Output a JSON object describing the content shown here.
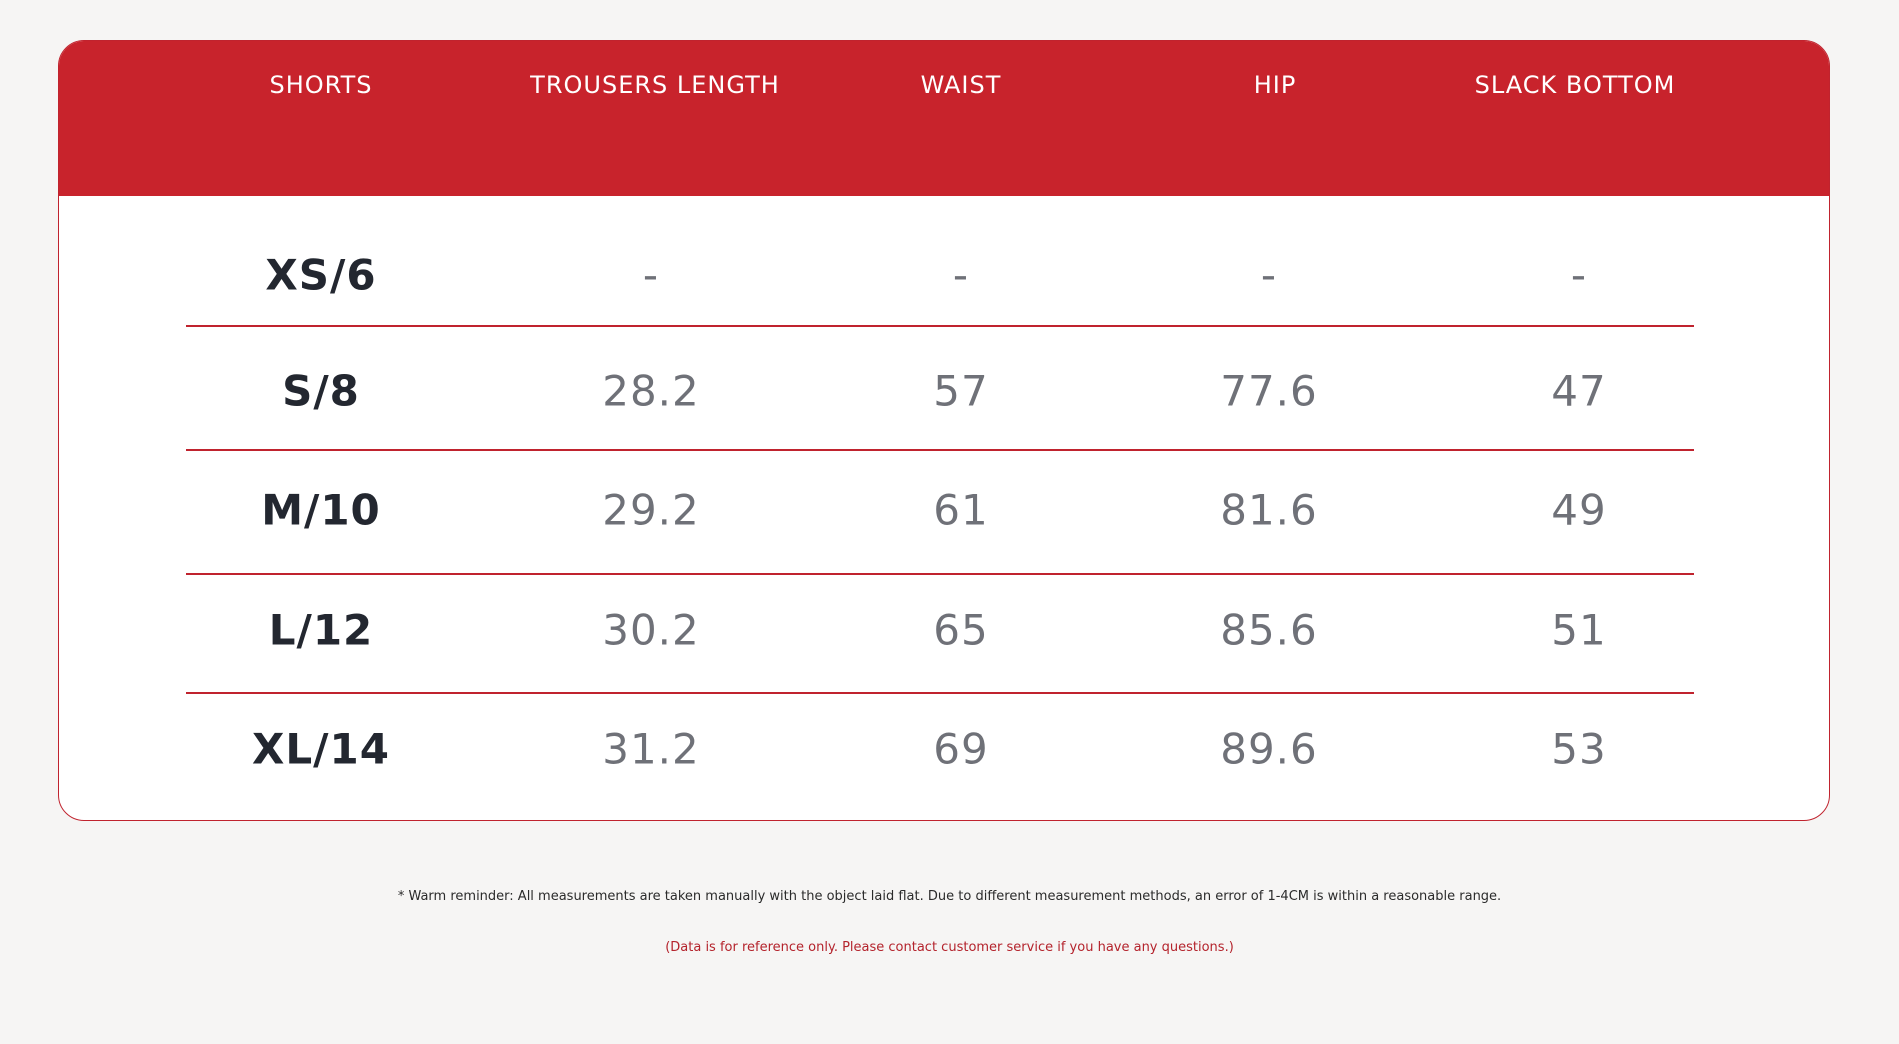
{
  "table": {
    "headers": [
      "SHORTS",
      "TROUSERS LENGTH",
      "WAIST",
      "HIP",
      "SLACK BOTTOM"
    ],
    "rows": [
      {
        "size": "XS/6",
        "trousers_length": "-",
        "waist": "-",
        "hip": "-",
        "slack_bottom": "-"
      },
      {
        "size": "S/8",
        "trousers_length": "28.2",
        "waist": "57",
        "hip": "77.6",
        "slack_bottom": "47"
      },
      {
        "size": "M/10",
        "trousers_length": "29.2",
        "waist": "61",
        "hip": "81.6",
        "slack_bottom": "49"
      },
      {
        "size": "L/12",
        "trousers_length": "30.2",
        "waist": "65",
        "hip": "85.6",
        "slack_bottom": "51"
      },
      {
        "size": "XL/14",
        "trousers_length": "31.2",
        "waist": "69",
        "hip": "89.6",
        "slack_bottom": "53"
      }
    ]
  },
  "notes": {
    "reminder": "* Warm reminder: All measurements are taken manually with the object laid flat. Due to different measurement methods, an error of 1-4CM is within a reasonable range.",
    "reference": "(Data is for reference only. Please contact customer service if you have any questions.)"
  },
  "colors": {
    "accent": "#c8232c",
    "size_text": "#232730",
    "value_text": "#6f7178",
    "background": "#f6f5f4"
  }
}
